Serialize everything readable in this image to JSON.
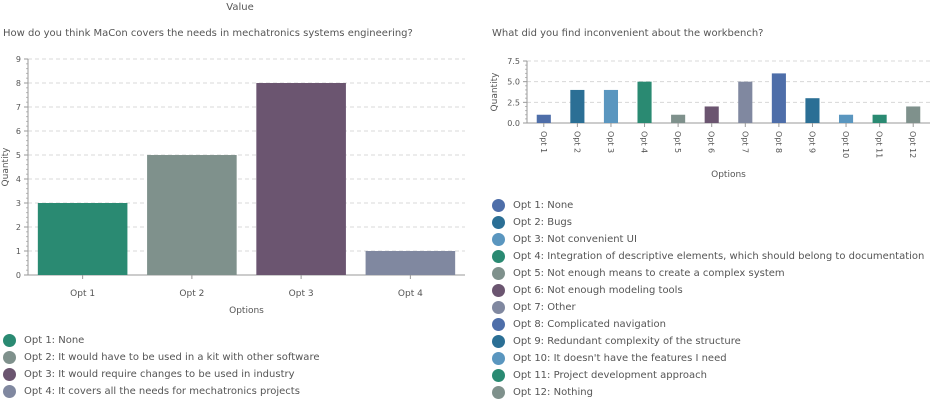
{
  "page_title": "Value",
  "chart_data": [
    {
      "type": "bar",
      "title": "How do you think MaCon covers the needs in mechatronics systems engineering?",
      "xlabel": "Options",
      "ylabel": "Quantity",
      "categories": [
        "Opt 1",
        "Opt 2",
        "Opt 3",
        "Opt 4"
      ],
      "values": [
        3,
        5,
        8,
        1
      ],
      "colors": [
        "#2a8a72",
        "#7f918c",
        "#6b5570",
        "#8088a0"
      ],
      "ylim": [
        0,
        9
      ],
      "yticks": [
        "0",
        "1",
        "2",
        "3",
        "4",
        "5",
        "6",
        "7",
        "8",
        "9"
      ],
      "grid": true,
      "legend": [
        {
          "label": "Opt 1: None",
          "color": "#2a8a72"
        },
        {
          "label": "Opt 2: It would have to be used in a kit with other software",
          "color": "#7f918c"
        },
        {
          "label": "Opt 3: It would require changes to be used in industry",
          "color": "#6b5570"
        },
        {
          "label": "Opt 4: It covers all the needs for mechatronics projects",
          "color": "#8088a0"
        }
      ],
      "legend_position": "bottom"
    },
    {
      "type": "bar",
      "title": "What did you find inconvenient about the workbench?",
      "xlabel": "Options",
      "ylabel": "Quantity",
      "categories": [
        "Opt 1",
        "Opt 2",
        "Opt 3",
        "Opt 4",
        "Opt 5",
        "Opt 6",
        "Opt 7",
        "Opt 8",
        "Opt 9",
        "Opt 10",
        "Opt 11",
        "Opt 12"
      ],
      "values": [
        1,
        4,
        4,
        5,
        1,
        2,
        5,
        6,
        3,
        1,
        1,
        2
      ],
      "colors": [
        "#4e6ea9",
        "#2b6f95",
        "#5a96bf",
        "#2a8a72",
        "#7f918c",
        "#6b5570",
        "#8088a0",
        "#4e6ea9",
        "#2b6f95",
        "#5a96bf",
        "#2a8a72",
        "#7f918c"
      ],
      "ylim": [
        0,
        7.5
      ],
      "yticks": [
        "0.0",
        "2.5",
        "5.0",
        "7.5"
      ],
      "grid": true,
      "legend": [
        {
          "label": "Opt 1: None",
          "color": "#4e6ea9"
        },
        {
          "label": "Opt 2: Bugs",
          "color": "#2b6f95"
        },
        {
          "label": "Opt 3: Not convenient UI",
          "color": "#5a96bf"
        },
        {
          "label": "Opt 4: Integration of descriptive elements, which should belong to documentation",
          "color": "#2a8a72"
        },
        {
          "label": "Opt 5: Not enough means to create a complex system",
          "color": "#7f918c"
        },
        {
          "label": "Opt 6: Not enough modeling tools",
          "color": "#6b5570"
        },
        {
          "label": "Opt 7: Other",
          "color": "#8088a0"
        },
        {
          "label": "Opt 8: Complicated navigation",
          "color": "#4e6ea9"
        },
        {
          "label": "Opt 9: Redundant complexity of the structure",
          "color": "#2b6f95"
        },
        {
          "label": "Opt 10: It doesn't have the features I need",
          "color": "#5a96bf"
        },
        {
          "label": "Opt 11: Project development approach",
          "color": "#2a8a72"
        },
        {
          "label": "Opt 12: Nothing",
          "color": "#7f918c"
        }
      ],
      "legend_position": "bottom"
    }
  ]
}
